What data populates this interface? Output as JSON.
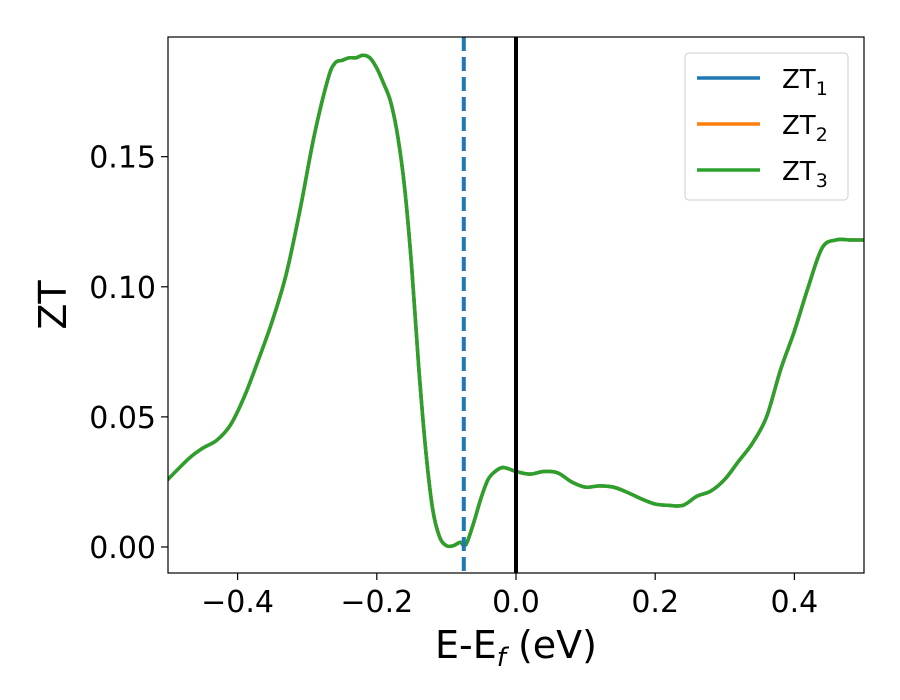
{
  "chart_data": {
    "type": "line",
    "xlabel": "E-E",
    "xlabel_subscript": "f",
    "xlabel_unit": " (eV)",
    "ylabel": "ZT",
    "xlim": [
      -0.5,
      0.5
    ],
    "ylim": [
      -0.01,
      0.196
    ],
    "x_ticks": [
      -0.4,
      -0.2,
      0.0,
      0.2,
      0.4
    ],
    "x_tick_labels": [
      "−0.4",
      "−0.2",
      "0.0",
      "0.2",
      "0.4"
    ],
    "y_ticks": [
      0.0,
      0.05,
      0.1,
      0.15
    ],
    "y_tick_labels": [
      "0.00",
      "0.05",
      "0.10",
      "0.15"
    ],
    "grid": false,
    "legend_position": "top-right",
    "series": [
      {
        "name": "ZT",
        "subscript": "1",
        "color": "#1f77b4",
        "x": [
          -0.5,
          -0.47,
          -0.45,
          -0.43,
          -0.41,
          -0.39,
          -0.37,
          -0.35,
          -0.33,
          -0.31,
          -0.29,
          -0.27,
          -0.26,
          -0.25,
          -0.24,
          -0.23,
          -0.22,
          -0.21,
          -0.2,
          -0.19,
          -0.18,
          -0.17,
          -0.16,
          -0.15,
          -0.14,
          -0.13,
          -0.12,
          -0.11,
          -0.1,
          -0.09,
          -0.08,
          -0.075,
          -0.07,
          -0.06,
          -0.05,
          -0.04,
          -0.03,
          -0.02,
          -0.01,
          0.0,
          0.02,
          0.04,
          0.06,
          0.08,
          0.1,
          0.12,
          0.14,
          0.16,
          0.18,
          0.2,
          0.22,
          0.24,
          0.26,
          0.28,
          0.3,
          0.32,
          0.34,
          0.36,
          0.38,
          0.4,
          0.42,
          0.44,
          0.46,
          0.48,
          0.5
        ],
        "y": [
          0.026,
          0.034,
          0.038,
          0.041,
          0.047,
          0.058,
          0.072,
          0.087,
          0.105,
          0.13,
          0.158,
          0.18,
          0.186,
          0.187,
          0.188,
          0.188,
          0.189,
          0.188,
          0.184,
          0.178,
          0.171,
          0.158,
          0.138,
          0.108,
          0.07,
          0.038,
          0.015,
          0.004,
          0.0005,
          0.0005,
          0.0018,
          0.0005,
          0.002,
          0.01,
          0.019,
          0.026,
          0.029,
          0.0305,
          0.03,
          0.029,
          0.028,
          0.029,
          0.0285,
          0.025,
          0.023,
          0.0235,
          0.023,
          0.021,
          0.0185,
          0.0165,
          0.016,
          0.016,
          0.0195,
          0.0215,
          0.026,
          0.033,
          0.04,
          0.05,
          0.068,
          0.083,
          0.1,
          0.115,
          0.118,
          0.118,
          0.118
        ]
      },
      {
        "name": "ZT",
        "subscript": "2",
        "color": "#ff7f0e",
        "x": [
          -0.5,
          -0.47,
          -0.45,
          -0.43,
          -0.41,
          -0.39,
          -0.37,
          -0.35,
          -0.33,
          -0.31,
          -0.29,
          -0.27,
          -0.26,
          -0.25,
          -0.24,
          -0.23,
          -0.22,
          -0.21,
          -0.2,
          -0.19,
          -0.18,
          -0.17,
          -0.16,
          -0.15,
          -0.14,
          -0.13,
          -0.12,
          -0.11,
          -0.1,
          -0.09,
          -0.08,
          -0.075,
          -0.07,
          -0.06,
          -0.05,
          -0.04,
          -0.03,
          -0.02,
          -0.01,
          0.0,
          0.02,
          0.04,
          0.06,
          0.08,
          0.1,
          0.12,
          0.14,
          0.16,
          0.18,
          0.2,
          0.22,
          0.24,
          0.26,
          0.28,
          0.3,
          0.32,
          0.34,
          0.36,
          0.38,
          0.4,
          0.42,
          0.44,
          0.46,
          0.48,
          0.5
        ],
        "y": [
          0.026,
          0.034,
          0.038,
          0.041,
          0.047,
          0.058,
          0.072,
          0.087,
          0.105,
          0.13,
          0.158,
          0.18,
          0.186,
          0.187,
          0.188,
          0.188,
          0.189,
          0.188,
          0.184,
          0.178,
          0.171,
          0.158,
          0.138,
          0.108,
          0.07,
          0.038,
          0.015,
          0.004,
          0.0005,
          0.0005,
          0.0018,
          0.0005,
          0.002,
          0.01,
          0.019,
          0.026,
          0.029,
          0.0305,
          0.03,
          0.029,
          0.028,
          0.029,
          0.0285,
          0.025,
          0.023,
          0.0235,
          0.023,
          0.021,
          0.0185,
          0.0165,
          0.016,
          0.016,
          0.0195,
          0.0215,
          0.026,
          0.033,
          0.04,
          0.05,
          0.068,
          0.083,
          0.1,
          0.115,
          0.118,
          0.118,
          0.118
        ]
      },
      {
        "name": "ZT",
        "subscript": "3",
        "color": "#2ca02c",
        "x": [
          -0.5,
          -0.47,
          -0.45,
          -0.43,
          -0.41,
          -0.39,
          -0.37,
          -0.35,
          -0.33,
          -0.31,
          -0.29,
          -0.27,
          -0.26,
          -0.25,
          -0.24,
          -0.23,
          -0.22,
          -0.21,
          -0.2,
          -0.19,
          -0.18,
          -0.17,
          -0.16,
          -0.15,
          -0.14,
          -0.13,
          -0.12,
          -0.11,
          -0.1,
          -0.09,
          -0.08,
          -0.075,
          -0.07,
          -0.06,
          -0.05,
          -0.04,
          -0.03,
          -0.02,
          -0.01,
          0.0,
          0.02,
          0.04,
          0.06,
          0.08,
          0.1,
          0.12,
          0.14,
          0.16,
          0.18,
          0.2,
          0.22,
          0.24,
          0.26,
          0.28,
          0.3,
          0.32,
          0.34,
          0.36,
          0.38,
          0.4,
          0.42,
          0.44,
          0.46,
          0.48,
          0.5
        ],
        "y": [
          0.026,
          0.034,
          0.038,
          0.041,
          0.047,
          0.058,
          0.072,
          0.087,
          0.105,
          0.13,
          0.158,
          0.18,
          0.186,
          0.187,
          0.188,
          0.188,
          0.189,
          0.188,
          0.184,
          0.178,
          0.171,
          0.158,
          0.138,
          0.108,
          0.07,
          0.038,
          0.015,
          0.004,
          0.0005,
          0.0005,
          0.0018,
          0.0005,
          0.002,
          0.01,
          0.019,
          0.026,
          0.029,
          0.0305,
          0.03,
          0.029,
          0.028,
          0.029,
          0.0285,
          0.025,
          0.023,
          0.0235,
          0.023,
          0.021,
          0.0185,
          0.0165,
          0.016,
          0.016,
          0.0195,
          0.0215,
          0.026,
          0.033,
          0.04,
          0.05,
          0.068,
          0.083,
          0.1,
          0.115,
          0.118,
          0.118,
          0.118
        ]
      }
    ],
    "vlines": [
      {
        "x": -0.075,
        "color": "#1f77b4",
        "style": "dashed"
      },
      {
        "x": 0.0,
        "color": "#000000",
        "style": "solid"
      }
    ]
  }
}
